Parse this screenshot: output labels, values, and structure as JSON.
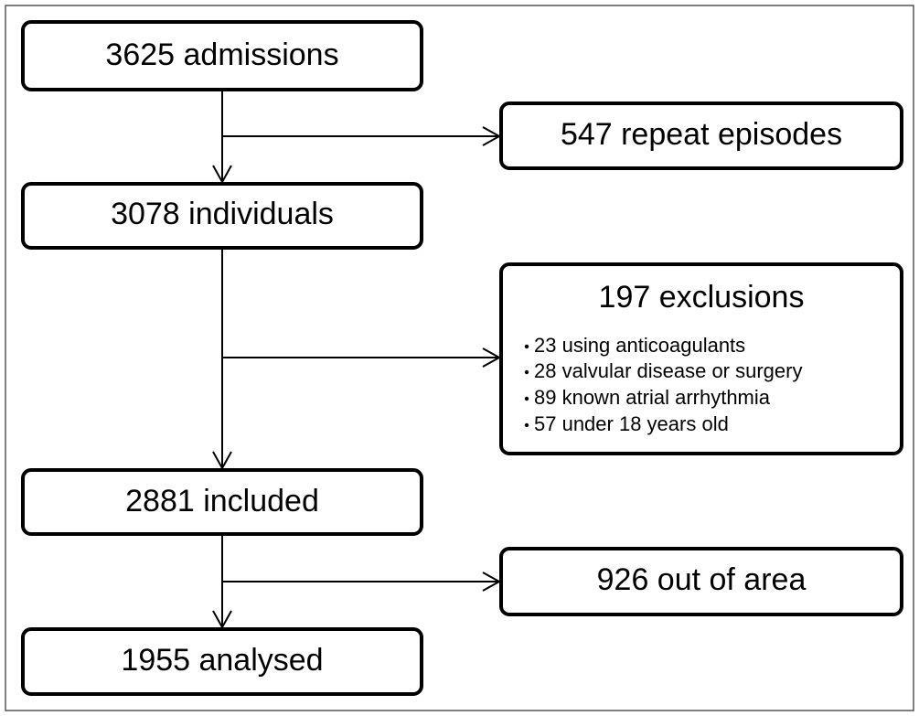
{
  "nodes": [
    {
      "label": "3625 admissions"
    },
    {
      "label": "547 repeat episodes"
    },
    {
      "label": "3078 individuals"
    },
    {
      "label": "197 exclusions",
      "items": [
        "23 using anticoagulants",
        "28 valvular disease or surgery",
        "89 known atrial arrhythmia",
        "57 under 18 years old"
      ]
    },
    {
      "label": "2881 included"
    },
    {
      "label": "926 out of area"
    },
    {
      "label": "1955 analysed"
    }
  ]
}
